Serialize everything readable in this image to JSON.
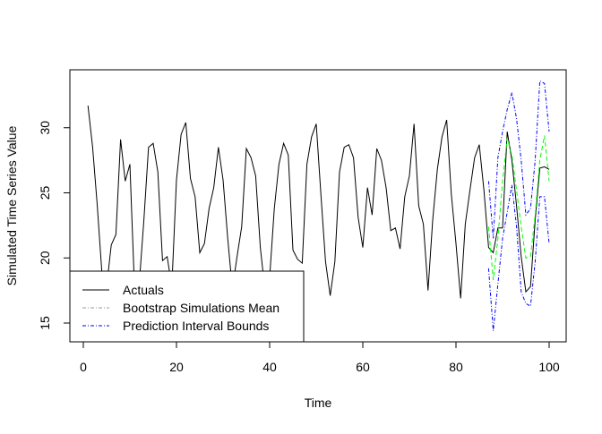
{
  "chart_data": {
    "type": "line",
    "title": "",
    "xlabel": "Time",
    "ylabel": "Simulated Time Series Value",
    "xlim": [
      -2,
      105
    ],
    "ylim": [
      13.6,
      34.5
    ],
    "x_ticks": [
      0,
      20,
      40,
      60,
      80,
      100
    ],
    "y_ticks": [
      15,
      20,
      25,
      30
    ],
    "grid": false,
    "legend_position": "bottom-left",
    "series": [
      {
        "name": "Actuals",
        "color": "#000000",
        "style": "solid",
        "x_start": 1,
        "values": [
          31.7,
          28.5,
          24.0,
          18.8,
          17.8,
          21.0,
          21.8,
          29.1,
          25.9,
          27.2,
          17.6,
          18.0,
          22.9,
          28.5,
          28.8,
          26.6,
          19.8,
          20.1,
          17.8,
          26.0,
          29.5,
          30.4,
          26.1,
          24.7,
          20.4,
          21.1,
          23.8,
          25.4,
          28.5,
          26.0,
          21.5,
          17.6,
          20.1,
          22.4,
          28.4,
          27.7,
          26.3,
          20.8,
          17.5,
          18.5,
          23.8,
          27.2,
          28.8,
          27.9,
          20.6,
          19.9,
          19.6,
          27.2,
          29.3,
          30.3,
          24.9,
          19.7,
          17.1,
          19.7,
          26.6,
          28.5,
          28.7,
          27.7,
          23.1,
          20.8,
          25.4,
          23.3,
          28.4,
          27.5,
          25.4,
          22.1,
          22.3,
          20.7,
          24.7,
          26.3,
          30.3,
          24.0,
          22.6,
          17.5,
          22.9,
          26.8,
          29.3,
          30.6,
          24.9,
          21.1,
          16.9,
          22.6,
          25.2,
          27.7,
          28.7,
          25.2,
          20.8,
          20.4,
          22.3,
          22.3,
          29.7,
          27.5,
          24.0,
          20.1,
          17.4,
          17.8,
          22.9,
          26.9,
          27.0,
          26.8
        ]
      },
      {
        "name": "Bootstrap Simulations Mean",
        "color": "#00FF00",
        "style": "dashed",
        "x_start": 87,
        "values": [
          22.4,
          18.3,
          21.5,
          25.9,
          29.2,
          27.9,
          25.2,
          22.4,
          20.0,
          20.1,
          23.3,
          27.5,
          29.4,
          25.9
        ]
      },
      {
        "name": "Prediction Interval Bounds",
        "color": "#0000FF",
        "style": "dotdash",
        "x_start": 87,
        "upper": [
          25.9,
          21.5,
          27.7,
          29.7,
          31.4,
          32.7,
          30.7,
          27.5,
          23.3,
          23.8,
          27.5,
          33.6,
          33.4,
          29.7
        ],
        "lower": [
          19.2,
          14.4,
          18.0,
          21.5,
          23.5,
          25.6,
          22.4,
          17.4,
          16.5,
          16.3,
          19.7,
          24.7,
          24.7,
          21.1
        ]
      }
    ]
  }
}
